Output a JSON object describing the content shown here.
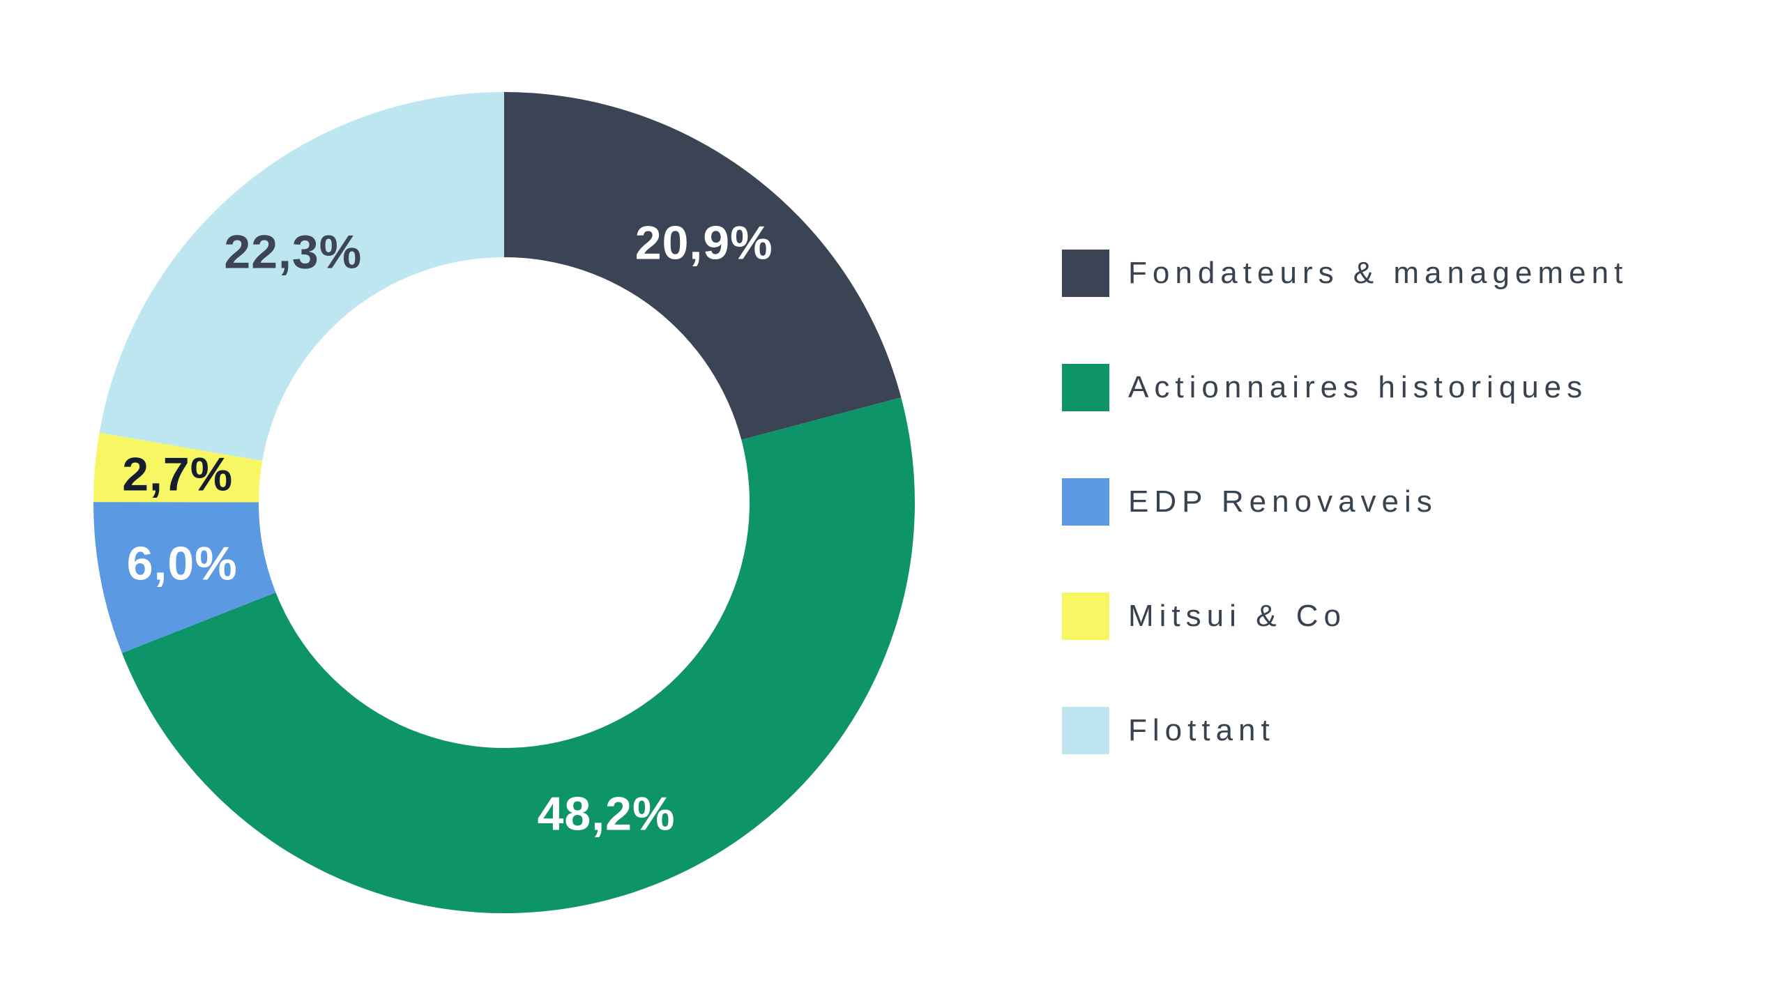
{
  "chart_data": {
    "type": "pie",
    "variant": "donut",
    "title": "",
    "legend_position": "right",
    "start_at": "top",
    "direction": "clockwise",
    "segments": [
      {
        "key": "fondateurs-management",
        "label": "Fondateurs & management",
        "value": 20.9,
        "display": "20,9%",
        "color": "#3b4454",
        "value_label_color": "#ffffff"
      },
      {
        "key": "actionnaires-historiques",
        "label": "Actionnaires historiques",
        "value": 48.2,
        "display": "48,2%",
        "color": "#0d9468",
        "value_label_color": "#ffffff"
      },
      {
        "key": "edp-renovaveis",
        "label": "EDP Renovaveis",
        "value": 6.0,
        "display": "6,0%",
        "color": "#5b99e2",
        "value_label_color": "#ffffff"
      },
      {
        "key": "mitsui-co",
        "label": "Mitsui & Co",
        "value": 2.7,
        "display": "2,7%",
        "color": "#f7f763",
        "value_label_color": "#161e2e"
      },
      {
        "key": "flottant",
        "label": "Flottant",
        "value": 22.3,
        "display": "22,3%",
        "color": "#bde6f1",
        "value_label_color": "#3d4555"
      }
    ]
  }
}
